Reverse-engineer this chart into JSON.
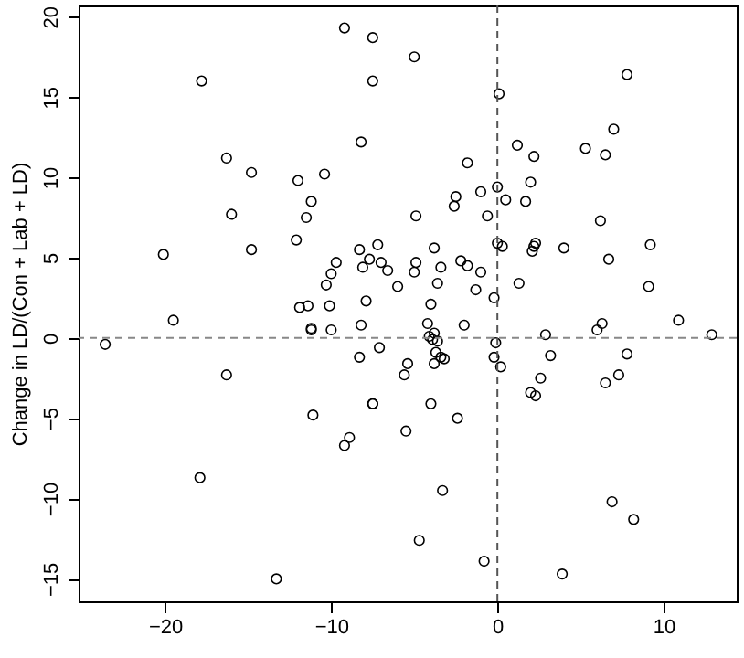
{
  "chart_data": {
    "type": "scatter",
    "ylabel": "Change in LD/(Con + Lab + LD)",
    "marker": "circle",
    "grid": false,
    "xlim": [
      -25.2,
      14.4
    ],
    "ylim": [
      -16.4,
      20.7
    ],
    "xticks": [
      -20,
      -10,
      0,
      10
    ],
    "yticks": [
      -15,
      -10,
      -5,
      0,
      5,
      10,
      15,
      20
    ],
    "ref_lines": [
      {
        "axis": "x",
        "value": 0,
        "color": "#555555",
        "line_style": "dashed"
      },
      {
        "axis": "y",
        "value": 0,
        "color": "#888888",
        "line_style": "dashed"
      }
    ],
    "series": [
      {
        "color": "#000000",
        "x": [
          -9.2,
          -7.5,
          -17.8,
          -7.5,
          -8.2,
          -16.3,
          -14.8,
          -12.0,
          -10.4,
          -11.2,
          -11.5,
          -16.0,
          -14.8,
          -12.1,
          -20.1,
          -19.5,
          -9.7,
          -10.0,
          -10.3,
          -8.3,
          -7.7,
          -8.1,
          -7.2,
          -7.0,
          -7.9,
          -10.1,
          -11.9,
          -11.4,
          -8.2,
          -11.2,
          -11.2,
          -10.0,
          -5.0,
          7.8,
          0.1,
          7.0,
          1.2,
          2.2,
          5.3,
          6.5,
          -1.8,
          2.0,
          0.0,
          -1.0,
          -2.5,
          -2.6,
          0.5,
          1.7,
          -4.9,
          -0.6,
          6.2,
          -3.8,
          0.0,
          0.3,
          2.3,
          2.2,
          2.1,
          4.0,
          9.2,
          6.7,
          -6.6,
          -4.9,
          -5.0,
          -3.4,
          -2.2,
          -1.8,
          -1.0,
          -6.0,
          -3.6,
          -1.3,
          1.3,
          9.1,
          -4.0,
          -0.2,
          -4.2,
          -2.0,
          6.3,
          10.9,
          -7.1,
          -4.1,
          -3.8,
          -3.9,
          -3.6,
          -3.7,
          -3.4,
          -3.2,
          -3.8,
          -5.4,
          -5.6,
          -0.1,
          -0.2,
          0.2,
          2.9,
          3.2,
          2.6,
          2.0,
          2.3,
          6.0,
          7.8,
          7.3,
          6.5,
          12.9,
          -7.5,
          -4.0,
          -2.4,
          -5.5,
          -3.3,
          6.9,
          8.2,
          -4.7,
          -0.8,
          3.9,
          -23.6,
          -16.3,
          -17.9,
          -13.3,
          -11.1,
          -9.2,
          -8.9,
          -8.3,
          -7.5
        ],
        "values": [
          19.3,
          18.7,
          16.0,
          16.0,
          12.2,
          11.2,
          10.3,
          9.8,
          10.2,
          8.5,
          7.5,
          7.7,
          5.5,
          6.1,
          5.2,
          1.1,
          4.7,
          4.0,
          3.3,
          5.5,
          4.9,
          4.4,
          5.8,
          4.7,
          2.3,
          2.0,
          1.9,
          2.0,
          0.8,
          0.5,
          0.6,
          0.5,
          17.5,
          16.4,
          15.2,
          13.0,
          12.0,
          11.3,
          11.8,
          11.4,
          10.9,
          9.7,
          9.4,
          9.1,
          8.8,
          8.2,
          8.6,
          8.5,
          7.6,
          7.6,
          7.3,
          5.6,
          5.9,
          5.7,
          5.9,
          5.7,
          5.4,
          5.6,
          5.8,
          4.9,
          4.2,
          4.7,
          4.1,
          4.4,
          4.8,
          4.5,
          4.1,
          3.2,
          3.4,
          3.0,
          3.4,
          3.2,
          2.1,
          2.5,
          0.9,
          0.8,
          0.9,
          1.1,
          -0.6,
          0.1,
          0.3,
          -0.1,
          -0.2,
          -0.9,
          -1.2,
          -1.3,
          -1.6,
          -1.6,
          -2.3,
          -0.3,
          -1.2,
          -1.8,
          0.2,
          -1.1,
          -2.5,
          -3.4,
          -3.6,
          0.5,
          -1.0,
          -2.3,
          -2.8,
          0.2,
          -4.1,
          -4.1,
          -5.0,
          -5.8,
          -9.5,
          -10.2,
          -11.3,
          -12.6,
          -13.9,
          -14.7,
          -0.4,
          -2.3,
          -8.7,
          -15.0,
          -4.8,
          -6.7,
          -6.2,
          -1.2,
          -4.1
        ]
      }
    ]
  }
}
